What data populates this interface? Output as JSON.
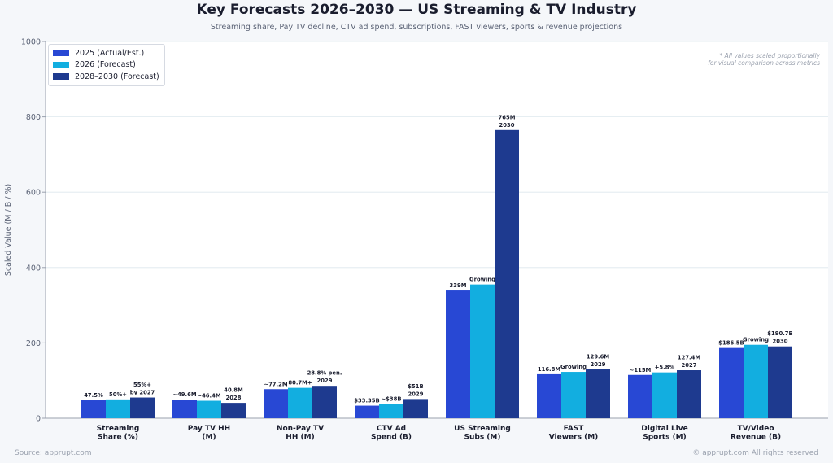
{
  "chart_data": {
    "type": "bar",
    "title": "Key Forecasts 2026–2030 — US Streaming & TV Industry",
    "subtitle": "Streaming share, Pay TV decline, CTV ad spend, subscriptions, FAST viewers, sports & revenue projections",
    "xlabel": "",
    "ylabel": "Scaled Value (M / B / %)",
    "ylim": [
      0,
      1000
    ],
    "yticks": [
      0,
      200,
      400,
      600,
      800,
      1000
    ],
    "grid": true,
    "legend_position": "top-left",
    "categories": [
      [
        "Streaming",
        "Share (%)"
      ],
      [
        "Pay TV HH",
        "(M)"
      ],
      [
        "Non-Pay TV",
        "HH (M)"
      ],
      [
        "CTV Ad",
        "Spend (B)"
      ],
      [
        "US Streaming",
        "Subs (M)"
      ],
      [
        "FAST",
        "Viewers (M)"
      ],
      [
        "Digital Live",
        "Sports (M)"
      ],
      [
        "TV/Video",
        "Revenue (B)"
      ]
    ],
    "series": [
      {
        "name": "2025 (Actual/Est.)",
        "color": "#2848d4",
        "values": [
          47.5,
          49.6,
          77.2,
          33.35,
          339,
          116.8,
          115,
          186.5
        ],
        "labels": [
          [
            "47.5%"
          ],
          [
            "~49.6M"
          ],
          [
            "~77.2M"
          ],
          [
            "$33.35B"
          ],
          [
            "339M"
          ],
          [
            "116.8M"
          ],
          [
            "~115M"
          ],
          [
            "$186.5B"
          ]
        ]
      },
      {
        "name": "2026 (Forecast)",
        "color": "#12aee0",
        "values": [
          50,
          46.4,
          80.7,
          38,
          355,
          123,
          121.7,
          195
        ],
        "labels": [
          [
            "50%+"
          ],
          [
            "~46.4M"
          ],
          [
            "80.7M+"
          ],
          [
            "~$38B"
          ],
          [
            "Growing"
          ],
          [
            "Growing"
          ],
          [
            "+5.8%"
          ],
          [
            "Growing"
          ]
        ]
      },
      {
        "name": "2028–2030 (Forecast)",
        "color": "#1e3a8f",
        "values": [
          55,
          40.8,
          86,
          51,
          765,
          129.6,
          127.4,
          190.7
        ],
        "labels": [
          [
            "55%+",
            "by 2027"
          ],
          [
            "40.8M",
            "2028"
          ],
          [
            "28.8% pen.",
            "2029"
          ],
          [
            "$51B",
            "2029"
          ],
          [
            "765M",
            "2030"
          ],
          [
            "129.6M",
            "2029"
          ],
          [
            "127.4M",
            "2027"
          ],
          [
            "$190.7B",
            "2030"
          ]
        ]
      }
    ],
    "annotation": [
      "* All values scaled proportionally",
      "for visual comparison across metrics"
    ]
  },
  "footer": {
    "source": "Source: apprupt.com",
    "copyright": "© apprupt.com  All rights reserved"
  }
}
